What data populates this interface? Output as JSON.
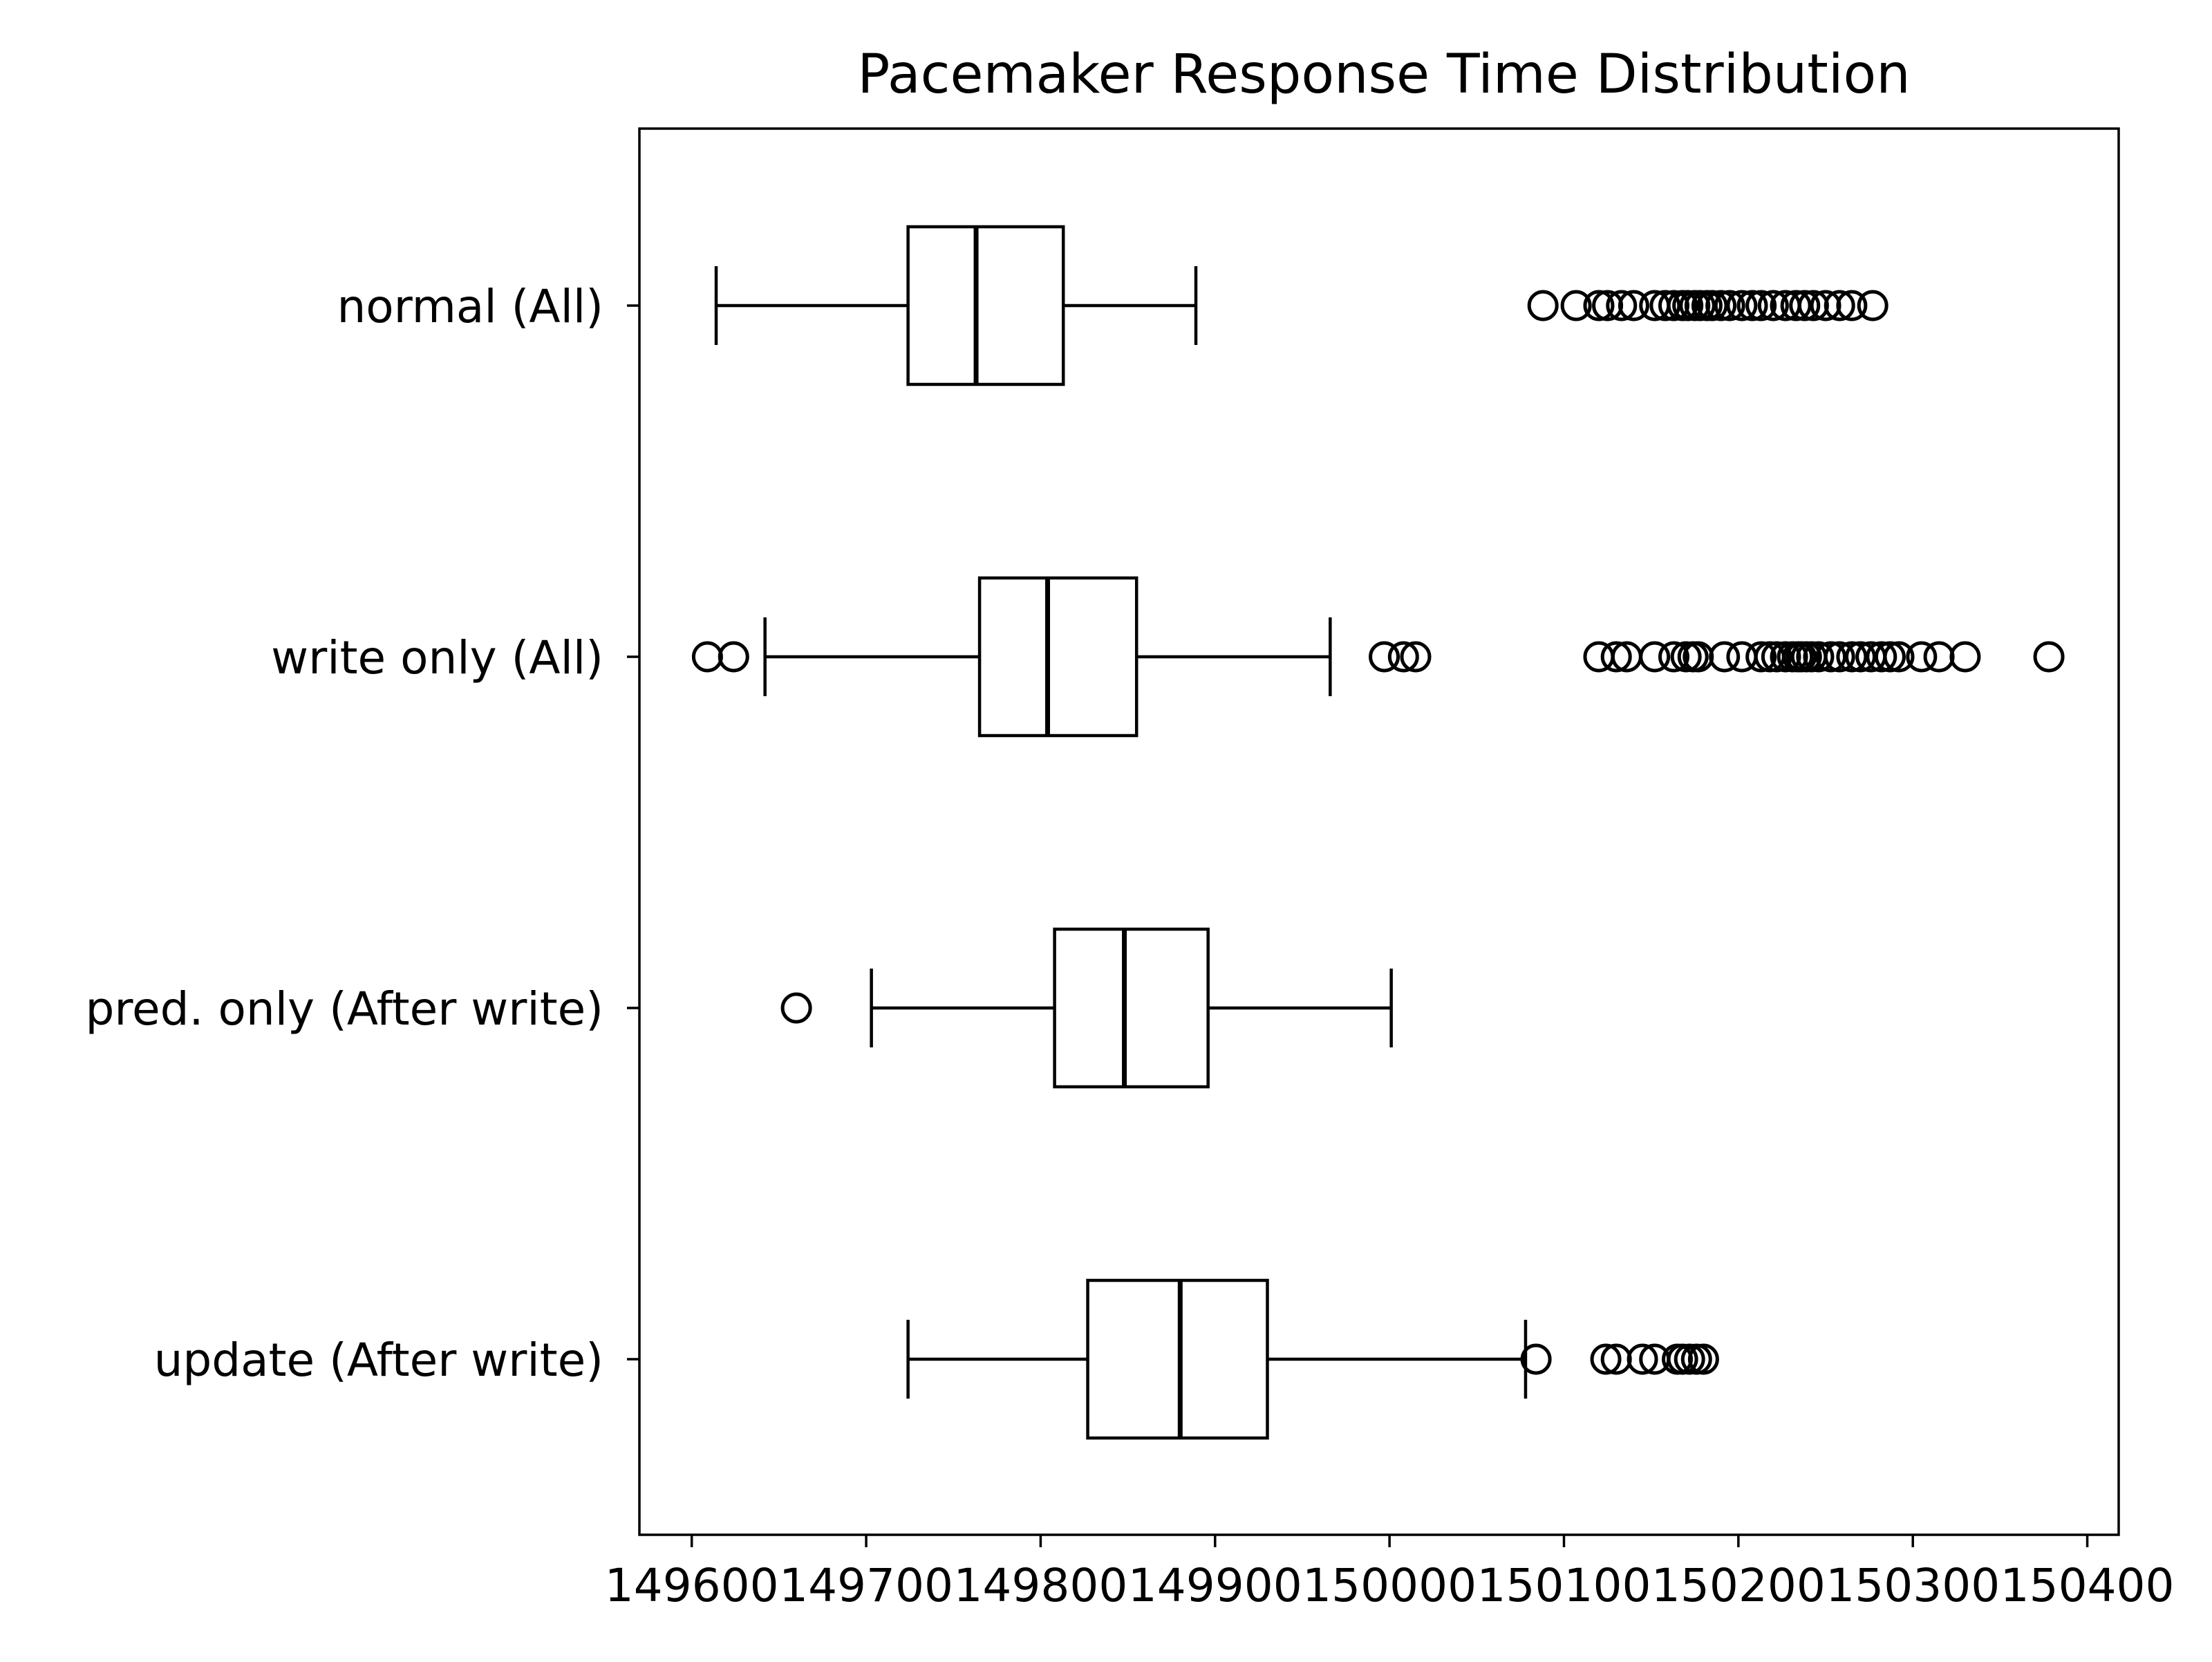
{
  "chart_data": {
    "type": "boxplot",
    "orientation": "horizontal",
    "title": "Pacemaker Response Time Distribution",
    "xlabel": "",
    "ylabel": "",
    "xlim": [
      149570,
      150418
    ],
    "xticks": [
      149600,
      149700,
      149800,
      149900,
      150000,
      150100,
      150200,
      150300,
      150400
    ],
    "xtick_labels": [
      "149600",
      "149700",
      "149800",
      "149900",
      "150000",
      "150100",
      "150200",
      "150300",
      "150400"
    ],
    "grid": false,
    "colors": {
      "line": "#000000",
      "background": "#ffffff"
    },
    "groups": [
      {
        "label": "normal (All)",
        "whisker_low": 149614,
        "q1": 149724,
        "median": 149763,
        "q3": 149813,
        "whisker_high": 149889,
        "outliers": [
          150088,
          150107,
          150120,
          150125,
          150133,
          150140,
          150152,
          150158,
          150163,
          150168,
          150171,
          150175,
          150178,
          150182,
          150185,
          150190,
          150195,
          150202,
          150208,
          150213,
          150220,
          150227,
          150233,
          150238,
          150243,
          150250,
          150258,
          150265,
          150277
        ]
      },
      {
        "label": "write only (All)",
        "whisker_low": 149642,
        "q1": 149765,
        "median": 149804,
        "q3": 149855,
        "whisker_high": 149966,
        "outliers": [
          149609,
          149624,
          149997,
          150008,
          150015,
          150120,
          150130,
          150136,
          150152,
          150163,
          150170,
          150174,
          150177,
          150192,
          150202,
          150213,
          150218,
          150222,
          150227,
          150231,
          150234,
          150236,
          150239,
          150242,
          150246,
          150253,
          150258,
          150265,
          150270,
          150276,
          150282,
          150287,
          150292,
          150305,
          150315,
          150330,
          150378
        ]
      },
      {
        "label": "pred. only (After write)",
        "whisker_low": 149703,
        "q1": 149808,
        "median": 149848,
        "q3": 149896,
        "whisker_high": 150001,
        "outliers": [
          149660
        ]
      },
      {
        "label": "update (After write)",
        "whisker_low": 149724,
        "q1": 149827,
        "median": 149880,
        "q3": 149930,
        "whisker_high": 150078,
        "outliers": [
          150084,
          150124,
          150130,
          150145,
          150152,
          150165,
          150168,
          150172,
          150176,
          150180
        ]
      }
    ]
  }
}
